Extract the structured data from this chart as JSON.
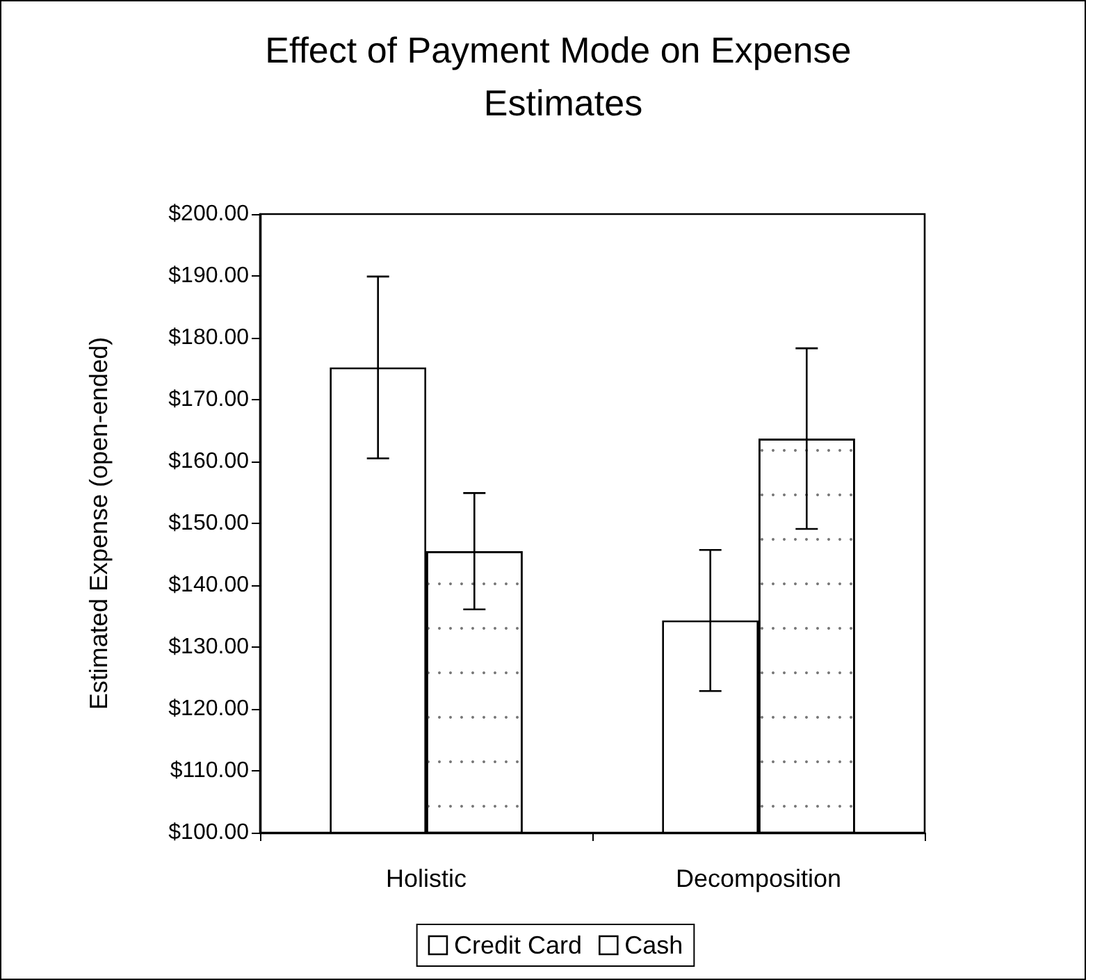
{
  "chart_data": {
    "type": "bar",
    "title": "Effect of Payment Mode on Expense Estimates",
    "ylabel": "Estimated Expense (open-ended)",
    "categories": [
      "Holistic",
      "Decomposition"
    ],
    "series": [
      {
        "name": "Credit Card",
        "color": "#ffffff",
        "values": [
          175.2,
          134.3
        ],
        "errors": [
          14.7,
          11.4
        ]
      },
      {
        "name": "Cash",
        "color": "#ffffff",
        "values": [
          145.5,
          163.7
        ],
        "errors": [
          9.4,
          14.6
        ]
      }
    ],
    "ylim": [
      100,
      200
    ],
    "yticks": [
      {
        "value": 100,
        "label": "$100.00"
      },
      {
        "value": 110,
        "label": "$110.00"
      },
      {
        "value": 120,
        "label": "$120.00"
      },
      {
        "value": 130,
        "label": "$130.00"
      },
      {
        "value": 140,
        "label": "$140.00"
      },
      {
        "value": 150,
        "label": "$150.00"
      },
      {
        "value": 160,
        "label": "$160.00"
      },
      {
        "value": 170,
        "label": "$170.00"
      },
      {
        "value": 180,
        "label": "$180.00"
      },
      {
        "value": 190,
        "label": "$190.00"
      },
      {
        "value": 200,
        "label": "$200.00"
      }
    ],
    "grid": false,
    "legend": "bottom"
  }
}
